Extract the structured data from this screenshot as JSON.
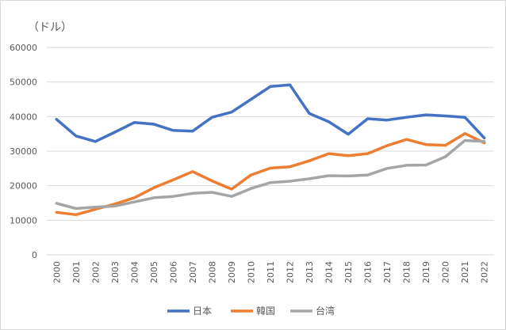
{
  "chart_data": {
    "type": "line",
    "title": "",
    "xlabel": "",
    "ylabel": "",
    "unit_label": "（ドル）",
    "ylim": [
      0,
      60000
    ],
    "y_ticks": [
      0,
      10000,
      20000,
      30000,
      40000,
      50000,
      60000
    ],
    "y_tick_labels": [
      "0",
      "10000",
      "20000",
      "30000",
      "40000",
      "50000",
      "60000"
    ],
    "grid": true,
    "legend_position": "bottom",
    "categories": [
      "2000",
      "2001",
      "2002",
      "2003",
      "2004",
      "2005",
      "2006",
      "2007",
      "2008",
      "2009",
      "2010",
      "2011",
      "2012",
      "2013",
      "2014",
      "2015",
      "2016",
      "2017",
      "2018",
      "2019",
      "2020",
      "2021",
      "2022"
    ],
    "series": [
      {
        "name": "日本",
        "color": "#4472c4",
        "values": [
          39200,
          34400,
          32800,
          35500,
          38300,
          37800,
          36000,
          35800,
          39800,
          41300,
          45000,
          48700,
          49200,
          40900,
          38500,
          34900,
          39400,
          39000,
          39800,
          40500,
          40200,
          39800,
          33800
        ]
      },
      {
        "name": "韓国",
        "color": "#ed7d31",
        "values": [
          12300,
          11600,
          13200,
          14700,
          16500,
          19400,
          21700,
          24100,
          21400,
          19000,
          23100,
          25100,
          25500,
          27200,
          29300,
          28700,
          29300,
          31600,
          33400,
          31900,
          31700,
          35100,
          32400
        ]
      },
      {
        "name": "台湾",
        "color": "#a5a5a5",
        "values": [
          14900,
          13400,
          13800,
          14100,
          15300,
          16500,
          16900,
          17800,
          18100,
          16900,
          19200,
          20900,
          21300,
          22000,
          22900,
          22800,
          23100,
          25000,
          25900,
          26000,
          28400,
          33100,
          32800
        ]
      }
    ]
  }
}
